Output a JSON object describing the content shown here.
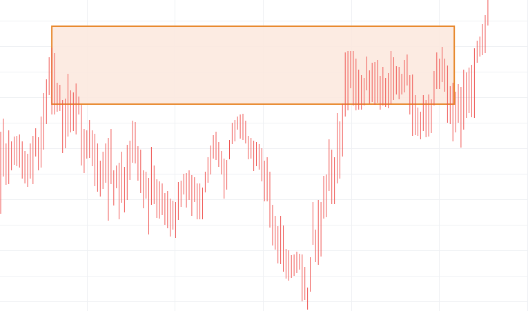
{
  "chart_data": {
    "type": "candlestick",
    "title": "",
    "xlabel": "",
    "ylabel": "",
    "grid": true,
    "x_range": [
      0,
      181
    ],
    "ylim": [
      0,
      451
    ],
    "colors": {
      "up": "#26a69a",
      "down": "#ef5350",
      "zone_fill": "#fbe7dd",
      "zone_border": "#e8892e",
      "grid": "#eef0f3"
    },
    "zone": {
      "label": "",
      "x_start": 19,
      "x_end": 168.5,
      "y_low": 300,
      "y_high": 413
    },
    "candles": [
      [
        0,
        186,
        260,
        141
      ],
      [
        1,
        263,
        279,
        195
      ],
      [
        2,
        197,
        243,
        183
      ],
      [
        3,
        216,
        262,
        184
      ],
      [
        4,
        221,
        246,
        204
      ],
      [
        5,
        233,
        253,
        212
      ],
      [
        6,
        243,
        254,
        210
      ],
      [
        7,
        236,
        256,
        208
      ],
      [
        8,
        199,
        246,
        192
      ],
      [
        9,
        207,
        232,
        185
      ],
      [
        10,
        195,
        228,
        180
      ],
      [
        11,
        206,
        243,
        192
      ],
      [
        12,
        213,
        254,
        184
      ],
      [
        13,
        240,
        265,
        224
      ],
      [
        14,
        221,
        252,
        204
      ],
      [
        15,
        245,
        282,
        208
      ],
      [
        16,
        308,
        316,
        234
      ],
      [
        17,
        304,
        336,
        271
      ],
      [
        18,
        338,
        368,
        313
      ],
      [
        19,
        369,
        382,
        285
      ],
      [
        20,
        325,
        374,
        285
      ],
      [
        21,
        294,
        331,
        289
      ],
      [
        22,
        305,
        328,
        290
      ],
      [
        23,
        259,
        306,
        229
      ],
      [
        24,
        271,
        308,
        236
      ],
      [
        25,
        290,
        344,
        253
      ],
      [
        26,
        298,
        320,
        259
      ],
      [
        27,
        271,
        317,
        261
      ],
      [
        28,
        294,
        330,
        256
      ],
      [
        29,
        298,
        311,
        285
      ],
      [
        30,
        238,
        299,
        211
      ],
      [
        31,
        222,
        264,
        200
      ],
      [
        32,
        243,
        262,
        221
      ],
      [
        33,
        243,
        277,
        222
      ],
      [
        34,
        238,
        262,
        210
      ],
      [
        35,
        197,
        257,
        181
      ],
      [
        36,
        210,
        243,
        173
      ],
      [
        37,
        174,
        218,
        166
      ],
      [
        38,
        225,
        231,
        177
      ],
      [
        39,
        192,
        243,
        186
      ],
      [
        40,
        188,
        251,
        131
      ],
      [
        41,
        188,
        264,
        184
      ],
      [
        42,
        158,
        204,
        153
      ],
      [
        43,
        202,
        211,
        178
      ],
      [
        44,
        170,
        215,
        133
      ],
      [
        45,
        197,
        231,
        157
      ],
      [
        46,
        160,
        209,
        143
      ],
      [
        47,
        199,
        241,
        161
      ],
      [
        48,
        212,
        247,
        190
      ],
      [
        49,
        232,
        276,
        215
      ],
      [
        50,
        244,
        274,
        214
      ],
      [
        51,
        220,
        239,
        189
      ],
      [
        52,
        215,
        234,
        171
      ],
      [
        53,
        158,
        204,
        149
      ],
      [
        54,
        182,
        202,
        163
      ],
      [
        55,
        147,
        193,
        111
      ],
      [
        56,
        200,
        238,
        154
      ],
      [
        57,
        184,
        211,
        155
      ],
      [
        58,
        158,
        191,
        135
      ],
      [
        59,
        161,
        188,
        134
      ],
      [
        60,
        155,
        185,
        139
      ],
      [
        61,
        146,
        171,
        125
      ],
      [
        62,
        139,
        174,
        120
      ],
      [
        63,
        141,
        163,
        108
      ],
      [
        64,
        133,
        160,
        118
      ],
      [
        65,
        129,
        158,
        106
      ],
      [
        66,
        142,
        187,
        132
      ],
      [
        67,
        172,
        189,
        151
      ],
      [
        68,
        190,
        199,
        169
      ],
      [
        69,
        182,
        200,
        150
      ],
      [
        70,
        173,
        204,
        161
      ],
      [
        71,
        156,
        197,
        138
      ],
      [
        72,
        177,
        194,
        158
      ],
      [
        73,
        170,
        185,
        133
      ],
      [
        74,
        143,
        185,
        133
      ],
      [
        75,
        145,
        179,
        133
      ],
      [
        76,
        184,
        202,
        172
      ],
      [
        77,
        205,
        223,
        186
      ],
      [
        78,
        212,
        240,
        198
      ],
      [
        79,
        242,
        255,
        221
      ],
      [
        80,
        241,
        260,
        219
      ],
      [
        81,
        227,
        245,
        209
      ],
      [
        82,
        216,
        232,
        198
      ],
      [
        83,
        189,
        221,
        163
      ],
      [
        84,
        196,
        219,
        176
      ],
      [
        85,
        225,
        248,
        220
      ],
      [
        86,
        257,
        273,
        242
      ],
      [
        87,
        267,
        277,
        246
      ],
      [
        88,
        279,
        282,
        263
      ],
      [
        89,
        271,
        285,
        250
      ],
      [
        90,
        271,
        286,
        248
      ],
      [
        91,
        249,
        276,
        243
      ],
      [
        92,
        241,
        254,
        220
      ],
      [
        93,
        241,
        251,
        221
      ],
      [
        94,
        236,
        247,
        203
      ],
      [
        95,
        223,
        245,
        210
      ],
      [
        96,
        221,
        242,
        205
      ],
      [
        97,
        220,
        236,
        188
      ],
      [
        98,
        200,
        218,
        159
      ],
      [
        99,
        171,
        223,
        159
      ],
      [
        100,
        131,
        202,
        121
      ],
      [
        101,
        123,
        154,
        95
      ],
      [
        102,
        91,
        138,
        89
      ],
      [
        103,
        87,
        123,
        69
      ],
      [
        104,
        90,
        138,
        68
      ],
      [
        105,
        74,
        124,
        57
      ],
      [
        106,
        51,
        90,
        47
      ],
      [
        107,
        53,
        88,
        44
      ],
      [
        108,
        65,
        81,
        48
      ],
      [
        109,
        61,
        82,
        51
      ],
      [
        110,
        73,
        86,
        55
      ],
      [
        111,
        66,
        83,
        60
      ],
      [
        112,
        43,
        82,
        14
      ],
      [
        113,
        15,
        64,
        16
      ],
      [
        114,
        13,
        34,
        2
      ],
      [
        115,
        68,
        78,
        28
      ],
      [
        116,
        142,
        158,
        96
      ],
      [
        117,
        96,
        118,
        71
      ],
      [
        118,
        82,
        161,
        67
      ],
      [
        119,
        137,
        158,
        79
      ],
      [
        120,
        146,
        196,
        134
      ],
      [
        121,
        177,
        198,
        136
      ],
      [
        122,
        184,
        249,
        174
      ],
      [
        123,
        216,
        234,
        155
      ],
      [
        124,
        190,
        223,
        155
      ],
      [
        125,
        211,
        287,
        185
      ],
      [
        126,
        247,
        275,
        192
      ],
      [
        127,
        275,
        301,
        224
      ],
      [
        128,
        314,
        375,
        282
      ],
      [
        129,
        330,
        377,
        291
      ],
      [
        130,
        371,
        377,
        323
      ],
      [
        131,
        319,
        377,
        298
      ],
      [
        132,
        331,
        366,
        291
      ],
      [
        133,
        310,
        350,
        292
      ],
      [
        134,
        313,
        342,
        292
      ],
      [
        135,
        301,
        338,
        298
      ],
      [
        136,
        345,
        369,
        320
      ],
      [
        137,
        307,
        349,
        301
      ],
      [
        138,
        320,
        360,
        303
      ],
      [
        139,
        322,
        361,
        299
      ],
      [
        140,
        345,
        364,
        302
      ],
      [
        141,
        328,
        341,
        292
      ],
      [
        142,
        327,
        354,
        298
      ],
      [
        143,
        314,
        338,
        296
      ],
      [
        144,
        301,
        345,
        294
      ],
      [
        145,
        307,
        377,
        300
      ],
      [
        146,
        364,
        368,
        306
      ],
      [
        147,
        330,
        355,
        314
      ],
      [
        148,
        319,
        354,
        307
      ],
      [
        149,
        338,
        344,
        314
      ],
      [
        150,
        321,
        364,
        317
      ],
      [
        151,
        339,
        372,
        327
      ],
      [
        152,
        307,
        342,
        285
      ],
      [
        153,
        325,
        343,
        254
      ],
      [
        154,
        274,
        313,
        255
      ],
      [
        155,
        284,
        295,
        254
      ],
      [
        156,
        267,
        289,
        249
      ],
      [
        157,
        290,
        313,
        261
      ],
      [
        158,
        264,
        306,
        252
      ],
      [
        159,
        272,
        314,
        253
      ],
      [
        160,
        308,
        307,
        258
      ],
      [
        161,
        324,
        348,
        298
      ],
      [
        162,
        334,
        375,
        322
      ],
      [
        163,
        355,
        366,
        322
      ],
      [
        164,
        364,
        383,
        332
      ],
      [
        165,
        334,
        366,
        318
      ],
      [
        166,
        324,
        356,
        273
      ],
      [
        167,
        301,
        326,
        271
      ],
      [
        168,
        299,
        331,
        246
      ],
      [
        169,
        267,
        318,
        259
      ],
      [
        170,
        292,
        329,
        273
      ],
      [
        171,
        267,
        325,
        237
      ],
      [
        172,
        312,
        350,
        263
      ],
      [
        173,
        329,
        346,
        280
      ],
      [
        174,
        323,
        353,
        287
      ],
      [
        175,
        288,
        357,
        281
      ],
      [
        176,
        375,
        381,
        280
      ],
      [
        177,
        390,
        392,
        360
      ],
      [
        178,
        374,
        398,
        369
      ],
      [
        179,
        386,
        416,
        371
      ],
      [
        180,
        383,
        429,
        374
      ],
      [
        181,
        415,
        451,
        414
      ]
    ]
  }
}
